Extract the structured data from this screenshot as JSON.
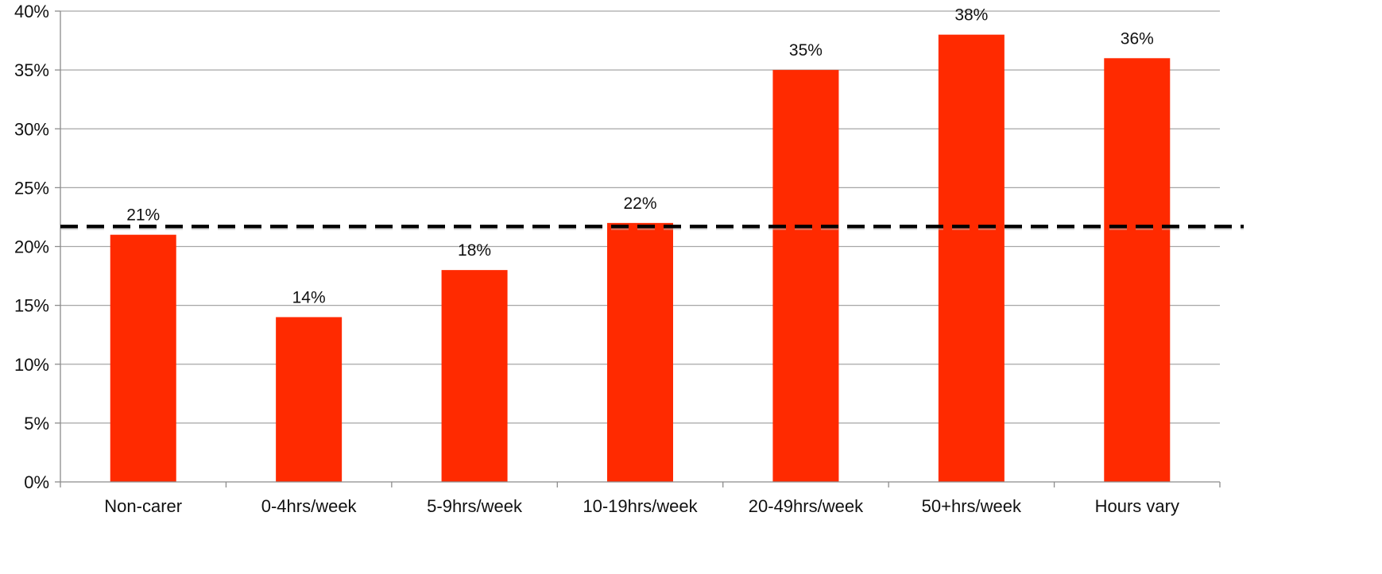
{
  "chart_data": {
    "type": "bar",
    "categories": [
      "Non-carer",
      "0-4hrs/week",
      "5-9hrs/week",
      "10-19hrs/week",
      "20-49hrs/week",
      "50+hrs/week",
      "Hours vary"
    ],
    "values": [
      21,
      14,
      18,
      22,
      35,
      38,
      36
    ],
    "data_labels": [
      "21%",
      "14%",
      "18%",
      "22%",
      "35%",
      "38%",
      "36%"
    ],
    "y_ticks": [
      0,
      5,
      10,
      15,
      20,
      25,
      30,
      35,
      40
    ],
    "y_tick_labels": [
      "0%",
      "5%",
      "10%",
      "15%",
      "20%",
      "25%",
      "30%",
      "35%",
      "40%"
    ],
    "ylim": [
      0,
      40
    ],
    "reference_line": {
      "value": 21.7,
      "style": "dashed"
    },
    "bar_color": "#ff2a00",
    "grid": true,
    "legend": "none",
    "title": "",
    "xlabel": "",
    "ylabel": ""
  }
}
